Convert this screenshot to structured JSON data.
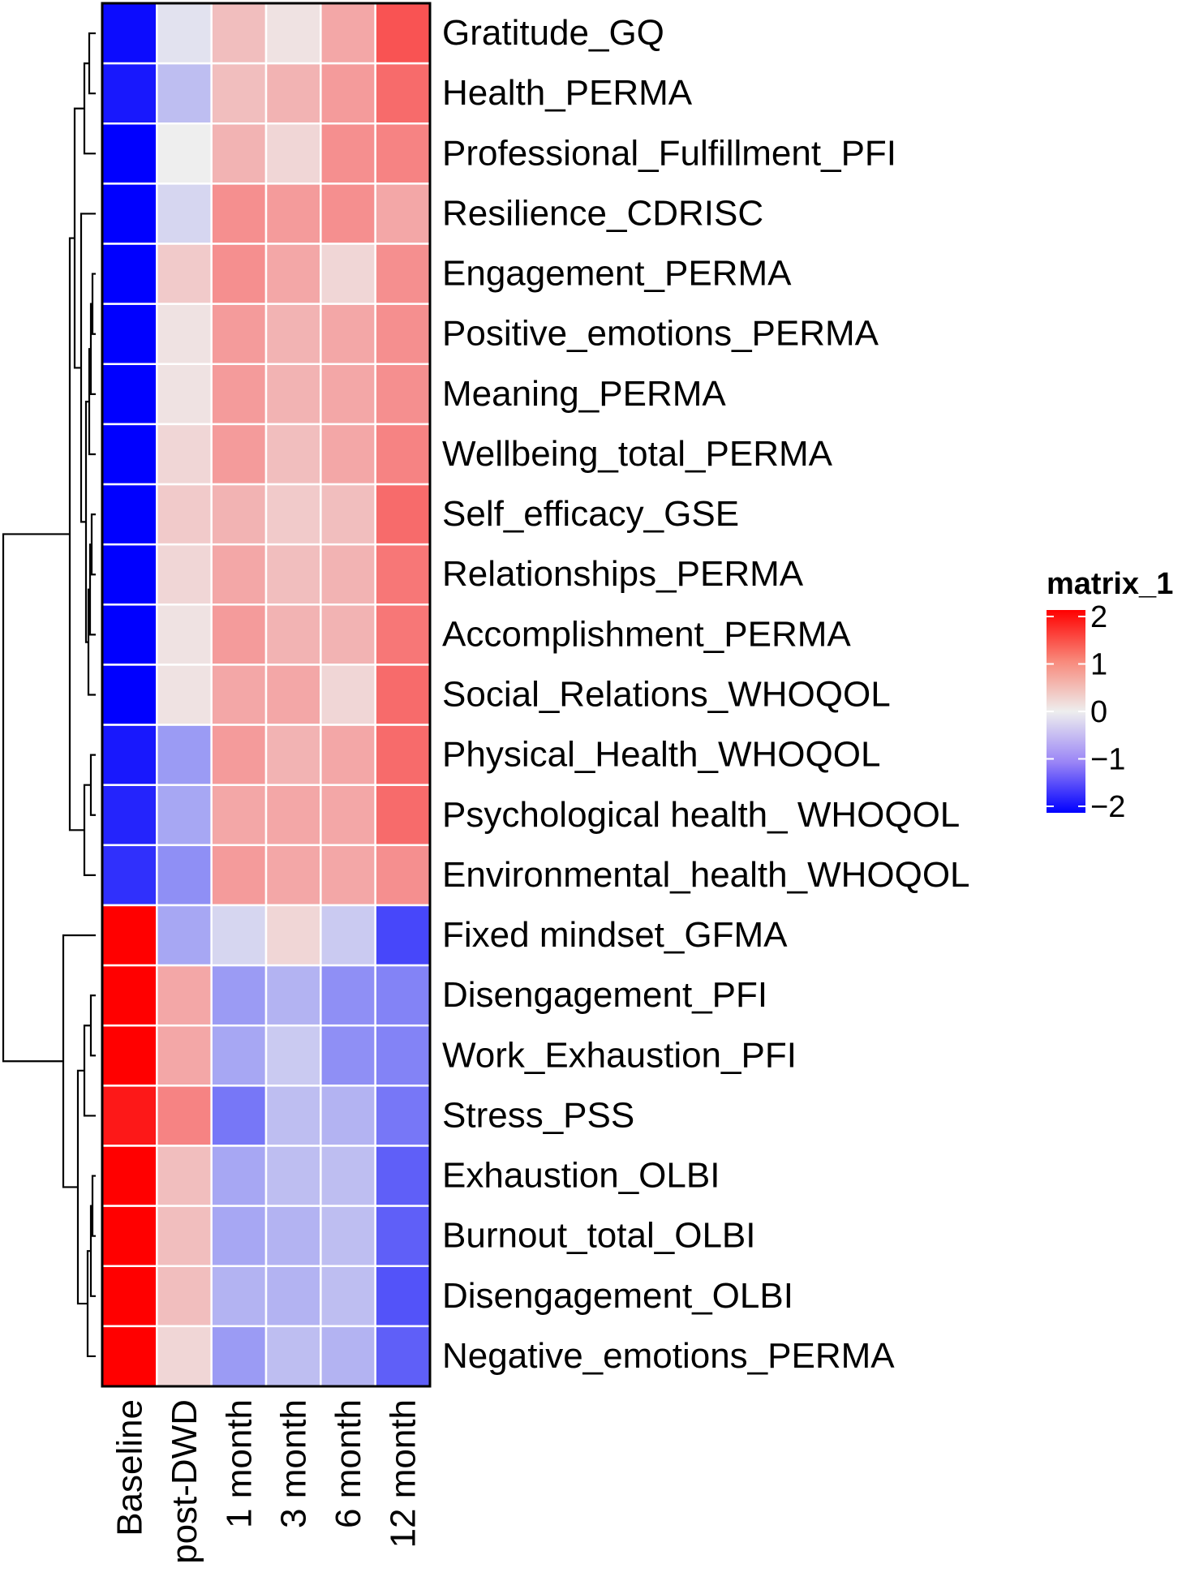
{
  "chart_data": {
    "type": "heatmap",
    "columns": [
      "Baseline",
      "post-DWD",
      "1 month",
      "3 month",
      "6 month",
      "12 month"
    ],
    "rows": [
      "Gratitude_GQ",
      "Health_PERMA",
      "Professional_Fulfillment_PFI",
      "Resilience_CDRISC",
      "Engagement_PERMA",
      "Positive_emotions_PERMA",
      "Meaning_PERMA",
      "Wellbeing_total_PERMA",
      "Self_efficacy_GSE",
      "Relationships_PERMA",
      "Accomplishment_PERMA",
      "Social_Relations_WHOQOL",
      "Physical_Health_WHOQOL",
      "Psychological health_ WHOQOL",
      "Environmental_health_WHOQOL",
      "Fixed mindset_GFMA",
      "Disengagement_PFI",
      "Work_Exhaustion_PFI",
      "Stress_PSS",
      "Exhaustion_OLBI",
      "Burnout_total_OLBI",
      "Disengagement_OLBI",
      "Negative_emotions_PERMA"
    ],
    "values": [
      [
        -1.9,
        -0.1,
        0.4,
        0.1,
        0.6,
        1.3
      ],
      [
        -1.8,
        -0.4,
        0.4,
        0.5,
        0.7,
        1.1
      ],
      [
        -2.0,
        0.0,
        0.5,
        0.2,
        0.8,
        0.9
      ],
      [
        -2.1,
        -0.2,
        0.8,
        0.7,
        0.8,
        0.6
      ],
      [
        -2.2,
        0.3,
        0.8,
        0.6,
        0.2,
        0.8
      ],
      [
        -2.2,
        0.1,
        0.7,
        0.5,
        0.6,
        0.8
      ],
      [
        -2.2,
        0.1,
        0.7,
        0.5,
        0.6,
        0.8
      ],
      [
        -2.2,
        0.2,
        0.7,
        0.4,
        0.6,
        0.9
      ],
      [
        -2.2,
        0.3,
        0.5,
        0.3,
        0.4,
        1.1
      ],
      [
        -2.2,
        0.2,
        0.6,
        0.4,
        0.5,
        1.0
      ],
      [
        -2.2,
        0.1,
        0.7,
        0.5,
        0.5,
        1.0
      ],
      [
        -2.2,
        0.1,
        0.6,
        0.6,
        0.2,
        1.1
      ],
      [
        -1.8,
        -0.7,
        0.7,
        0.5,
        0.6,
        1.1
      ],
      [
        -1.7,
        -0.6,
        0.6,
        0.6,
        0.6,
        1.1
      ],
      [
        -1.6,
        -0.8,
        0.7,
        0.6,
        0.6,
        0.8
      ],
      [
        2.0,
        -0.6,
        -0.2,
        0.2,
        -0.3,
        -1.4
      ],
      [
        2.0,
        0.6,
        -0.7,
        -0.5,
        -0.8,
        -0.9
      ],
      [
        2.0,
        0.6,
        -0.6,
        -0.3,
        -0.8,
        -0.9
      ],
      [
        1.8,
        0.9,
        -1.0,
        -0.4,
        -0.5,
        -1.0
      ],
      [
        2.0,
        0.4,
        -0.6,
        -0.4,
        -0.4,
        -1.2
      ],
      [
        2.0,
        0.4,
        -0.6,
        -0.5,
        -0.4,
        -1.2
      ],
      [
        2.0,
        0.4,
        -0.5,
        -0.5,
        -0.4,
        -1.3
      ],
      [
        2.1,
        0.2,
        -0.7,
        -0.4,
        -0.5,
        -1.2
      ]
    ],
    "color_scale": {
      "min": -2,
      "mid": 0,
      "max": 2,
      "low": "#0000ff",
      "midcolor": "#eeeeee",
      "high": "#ff0000"
    },
    "legend": {
      "title": "matrix_1",
      "ticks": [
        2,
        1,
        0,
        -1,
        -2
      ],
      "tick_labels": [
        "2",
        "1",
        "0",
        "−1",
        "−2"
      ],
      "position": "right"
    },
    "row_dendrogram": true,
    "cell_border_color": "#ffffff"
  }
}
